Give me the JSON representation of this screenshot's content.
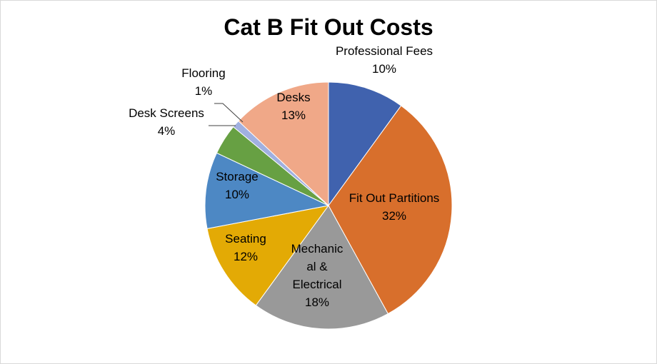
{
  "chart_data": {
    "type": "pie",
    "title": "Cat B Fit Out Costs",
    "slices": [
      {
        "name": "Professional Fees",
        "label_lines": [
          "Professional Fees"
        ],
        "value": 10,
        "percent_label": "10%",
        "color": "#4062ae"
      },
      {
        "name": "Fit Out Partitions",
        "label_lines": [
          "Fit Out Partitions"
        ],
        "value": 32,
        "percent_label": "32%",
        "color": "#d86f2c"
      },
      {
        "name": "Mechanical & Electrical",
        "label_lines": [
          "Mechanic",
          "al &",
          "Electrical"
        ],
        "value": 18,
        "percent_label": "18%",
        "color": "#999999"
      },
      {
        "name": "Seating",
        "label_lines": [
          "Seating"
        ],
        "value": 12,
        "percent_label": "12%",
        "color": "#e3aa05"
      },
      {
        "name": "Storage",
        "label_lines": [
          "Storage"
        ],
        "value": 10,
        "percent_label": "10%",
        "color": "#4d88c4"
      },
      {
        "name": "Desk Screens",
        "label_lines": [
          "Desk Screens"
        ],
        "value": 4,
        "percent_label": "4%",
        "color": "#67a043"
      },
      {
        "name": "Flooring",
        "label_lines": [
          "Flooring"
        ],
        "value": 1,
        "percent_label": "1%",
        "color": "#a0b0e0"
      },
      {
        "name": "Desks",
        "label_lines": [
          "Desks"
        ],
        "value": 13,
        "percent_label": "13%",
        "color": "#f0a888"
      }
    ],
    "legend": "none"
  }
}
